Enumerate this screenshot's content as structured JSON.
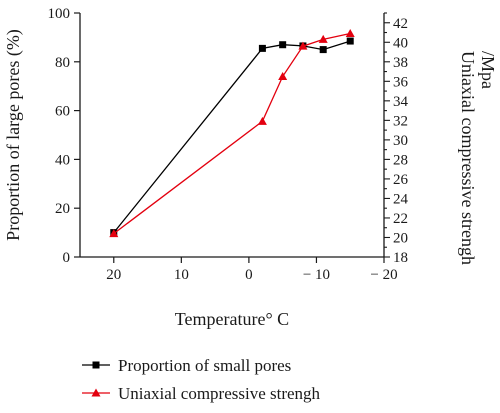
{
  "chart_data": {
    "type": "line",
    "xlabel": "Temperature° C",
    "ylabel_left": "Proportion of large pores (%)",
    "ylabel_right_lines": [
      "Uniaxial compressive strengh",
      "/Mpa"
    ],
    "xlim": [
      25,
      -20
    ],
    "ylim_left": [
      0,
      100
    ],
    "ylim_right": [
      18,
      43
    ],
    "x_ticks": [
      20,
      10,
      0,
      -10,
      -20
    ],
    "x_tick_labels": [
      "20",
      "10",
      "0",
      "− 10",
      "− 20"
    ],
    "y_left_ticks": [
      0,
      20,
      40,
      60,
      80,
      100
    ],
    "y_right_ticks": [
      18,
      20,
      22,
      24,
      26,
      28,
      30,
      32,
      34,
      36,
      38,
      40,
      42
    ],
    "grid": false,
    "legend_position": "bottom",
    "series": [
      {
        "name": "Proportion of small pores",
        "axis": "left",
        "color": "#000000",
        "marker": "square",
        "x": [
          20,
          -2,
          -5,
          -8,
          -11,
          -15
        ],
        "y": [
          10,
          85.5,
          87,
          86.5,
          85,
          88.5
        ]
      },
      {
        "name": "Uniaxial compressive strengh",
        "axis": "right",
        "color": "#e3000f",
        "marker": "triangle",
        "x": [
          20,
          -2,
          -5,
          -8,
          -11,
          -15
        ],
        "y": [
          20.4,
          31.9,
          36.5,
          39.6,
          40.3,
          40.9
        ]
      }
    ]
  }
}
